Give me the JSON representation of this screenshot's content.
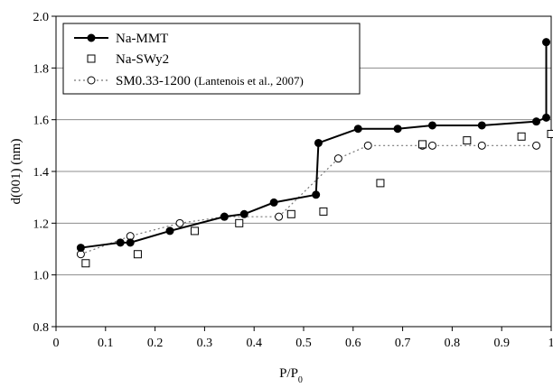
{
  "chart_data": {
    "type": "scatter",
    "title": "",
    "xlabel": "P/P",
    "xlabel_sub": "0",
    "ylabel": "d(001) (nm)",
    "xlim": [
      0,
      1
    ],
    "ylim": [
      0.8,
      2.0
    ],
    "x_ticks": [
      0,
      0.1,
      0.2,
      0.3,
      0.4,
      0.5,
      0.6,
      0.7,
      0.8,
      0.9,
      1
    ],
    "x_tick_labels": [
      "0",
      "0.1",
      "0.2",
      "0.3",
      "0.4",
      "0.5",
      "0.6",
      "0.7",
      "0.8",
      "0.9",
      "1"
    ],
    "y_ticks": [
      0.8,
      1.0,
      1.2,
      1.4,
      1.6,
      1.8,
      2.0
    ],
    "y_tick_labels": [
      "0.8",
      "1.0",
      "1.2",
      "1.4",
      "1.6",
      "1.8",
      "2.0"
    ],
    "grid": "horizontal",
    "legend_position": "top-left",
    "series": [
      {
        "name": "Na-MMT",
        "marker": "filled-circle",
        "line": "solid",
        "color": "#000000",
        "x": [
          0.05,
          0.13,
          0.15,
          0.23,
          0.34,
          0.38,
          0.44,
          0.525,
          0.53,
          0.61,
          0.69,
          0.76,
          0.86,
          0.97,
          0.99,
          0.99
        ],
        "y": [
          1.105,
          1.125,
          1.125,
          1.17,
          1.225,
          1.235,
          1.28,
          1.31,
          1.51,
          1.565,
          1.565,
          1.578,
          1.578,
          1.593,
          1.608,
          1.9
        ]
      },
      {
        "name": "Na-SWy2",
        "marker": "open-square",
        "line": "none",
        "color": "#000000",
        "x": [
          0.06,
          0.165,
          0.28,
          0.37,
          0.475,
          0.54,
          0.655,
          0.74,
          0.83,
          0.94,
          1.0
        ],
        "y": [
          1.045,
          1.08,
          1.17,
          1.2,
          1.235,
          1.245,
          1.355,
          1.505,
          1.52,
          1.535,
          1.545
        ]
      },
      {
        "name": "SM0.33-1200",
        "name_suffix": "(Lantenois et al., 2007)",
        "marker": "open-circle",
        "line": "dotted",
        "color": "#777777",
        "x": [
          0.05,
          0.15,
          0.25,
          0.34,
          0.45,
          0.57,
          0.63,
          0.74,
          0.76,
          0.86,
          0.97
        ],
        "y": [
          1.08,
          1.15,
          1.2,
          1.225,
          1.225,
          1.45,
          1.5,
          1.5,
          1.5,
          1.5,
          1.5
        ]
      }
    ]
  }
}
